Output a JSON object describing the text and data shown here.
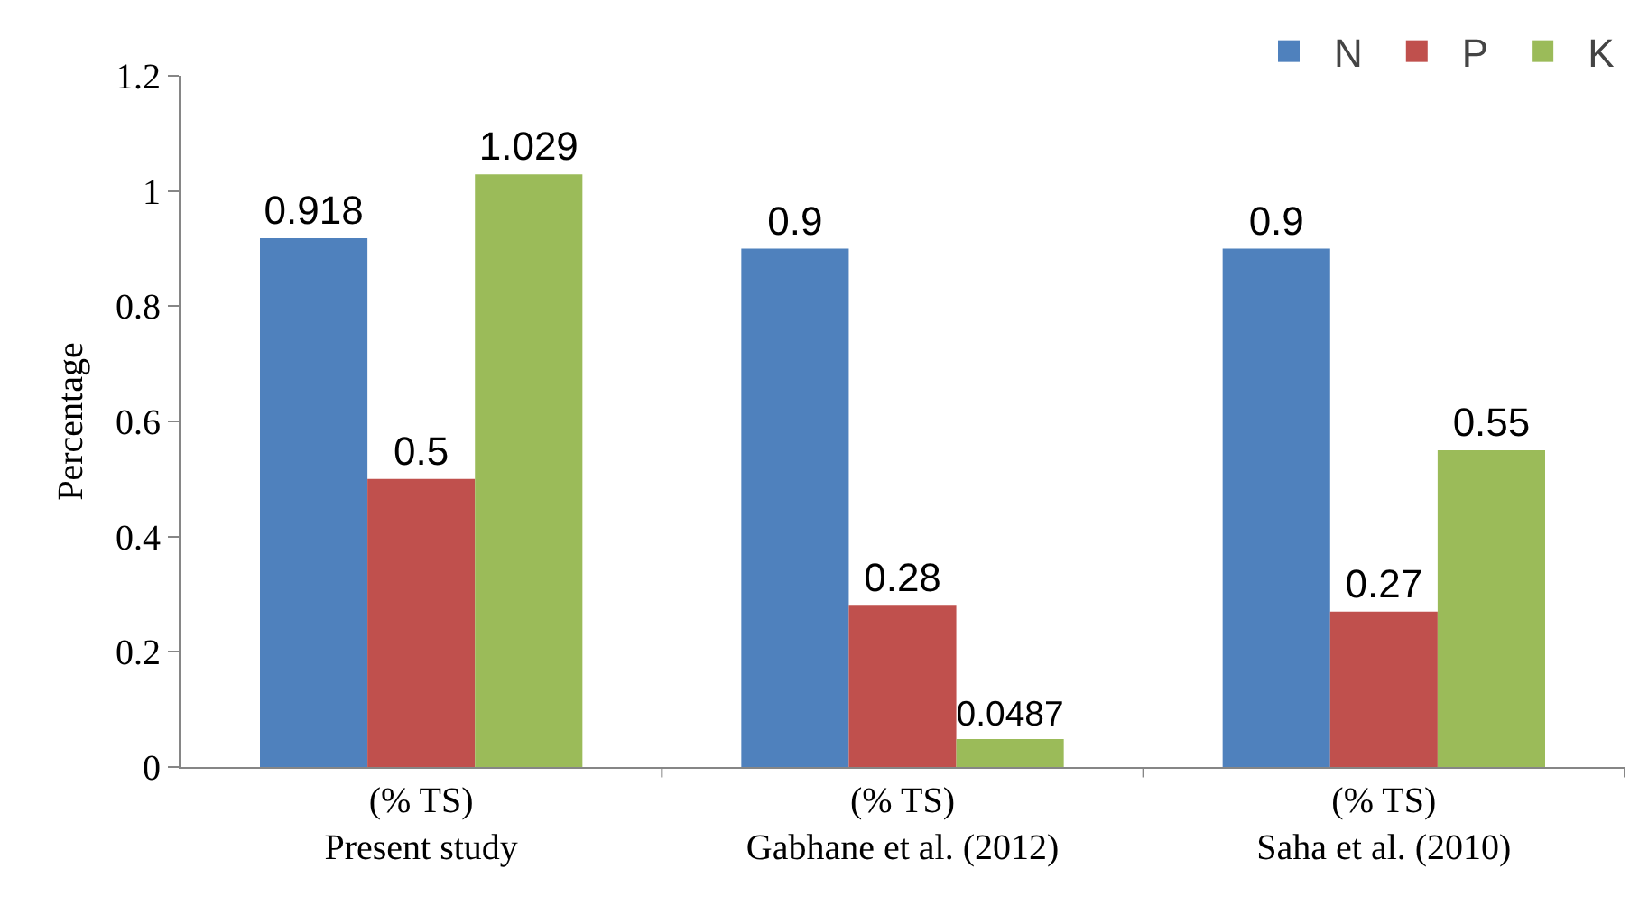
{
  "chart_data": {
    "type": "bar",
    "ylabel": "Percentage",
    "categories": [
      "(% TS)\nPresent study",
      "(% TS)\nGabhane et al. (2012)",
      "(% TS)\nSaha et al. (2010)"
    ],
    "series": [
      {
        "name": "N",
        "color": "#4f81bd",
        "values": [
          0.918,
          0.9,
          0.9
        ]
      },
      {
        "name": "P",
        "color": "#c0504d",
        "values": [
          0.5,
          0.28,
          0.27
        ]
      },
      {
        "name": "K",
        "color": "#9bbb59",
        "values": [
          1.029,
          0.0487,
          0.55
        ]
      }
    ],
    "ylim": [
      0,
      1.2
    ],
    "yticks": [
      0,
      0.2,
      0.4,
      0.6,
      0.8,
      1,
      1.2
    ],
    "data_labels": true,
    "grid": false,
    "legend": "top right"
  }
}
